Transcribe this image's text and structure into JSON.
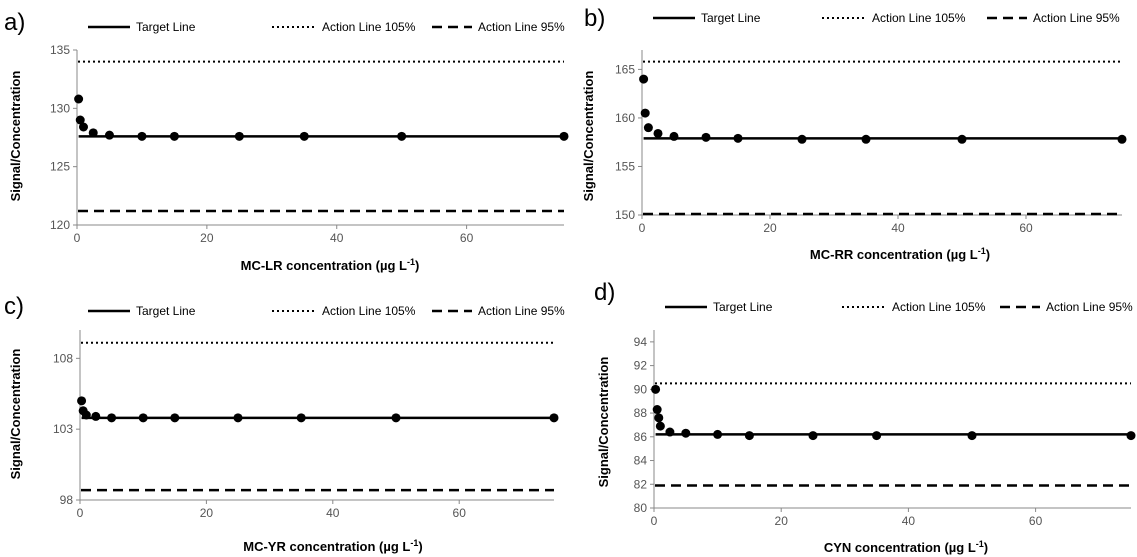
{
  "legend": {
    "target": "Target Line",
    "upper": "Action Line 105%",
    "lower": "Action Line 95%"
  },
  "chart_data": [
    {
      "type": "scatter",
      "panel_label": "a)",
      "xlabel_main": "MC-LR concentration (µg L",
      "xlabel_sup": "-1",
      "xlabel_end": ")",
      "ylabel": "Signal/Concentration",
      "xlim": [
        0,
        75
      ],
      "ylim": [
        120,
        135
      ],
      "xticks": [
        0,
        20,
        40,
        60
      ],
      "yticks": [
        120,
        125,
        130,
        135
      ],
      "target_value": 127.6,
      "action_105": 134.0,
      "action_95": 121.2,
      "points": [
        {
          "x": 0.25,
          "y": 130.8
        },
        {
          "x": 0.5,
          "y": 129.0
        },
        {
          "x": 1.0,
          "y": 128.4
        },
        {
          "x": 2.5,
          "y": 127.9
        },
        {
          "x": 5,
          "y": 127.7
        },
        {
          "x": 10,
          "y": 127.6
        },
        {
          "x": 15,
          "y": 127.6
        },
        {
          "x": 25,
          "y": 127.6
        },
        {
          "x": 35,
          "y": 127.6
        },
        {
          "x": 50,
          "y": 127.6
        },
        {
          "x": 75,
          "y": 127.6
        }
      ]
    },
    {
      "type": "scatter",
      "panel_label": "b)",
      "xlabel_main": "MC-RR concentration (µg L",
      "xlabel_sup": "-1",
      "xlabel_end": ")",
      "ylabel": "Signal/Concentration",
      "xlim": [
        0,
        75
      ],
      "ylim": [
        150,
        167
      ],
      "xticks": [
        0,
        20,
        40,
        60
      ],
      "yticks": [
        150,
        155,
        160,
        165
      ],
      "target_value": 157.9,
      "action_105": 165.8,
      "action_95": 150.1,
      "points": [
        {
          "x": 0.25,
          "y": 164.0
        },
        {
          "x": 0.5,
          "y": 160.5
        },
        {
          "x": 1.0,
          "y": 159.0
        },
        {
          "x": 2.5,
          "y": 158.4
        },
        {
          "x": 5,
          "y": 158.1
        },
        {
          "x": 10,
          "y": 158.0
        },
        {
          "x": 15,
          "y": 157.9
        },
        {
          "x": 25,
          "y": 157.8
        },
        {
          "x": 35,
          "y": 157.8
        },
        {
          "x": 50,
          "y": 157.8
        },
        {
          "x": 75,
          "y": 157.8
        }
      ]
    },
    {
      "type": "scatter",
      "panel_label": "c)",
      "xlabel_main": "MC-YR concentration (µg L",
      "xlabel_sup": "-1",
      "xlabel_end": ")",
      "ylabel": "Signal/Concentration",
      "xlim": [
        0,
        75
      ],
      "ylim": [
        98,
        110
      ],
      "xticks": [
        0,
        20,
        40,
        60
      ],
      "yticks": [
        98,
        103,
        108
      ],
      "target_value": 103.8,
      "action_105": 109.1,
      "action_95": 98.7,
      "points": [
        {
          "x": 0.25,
          "y": 105.0
        },
        {
          "x": 0.5,
          "y": 104.3
        },
        {
          "x": 1.0,
          "y": 104.0
        },
        {
          "x": 2.5,
          "y": 103.9
        },
        {
          "x": 5,
          "y": 103.8
        },
        {
          "x": 10,
          "y": 103.8
        },
        {
          "x": 15,
          "y": 103.8
        },
        {
          "x": 25,
          "y": 103.8
        },
        {
          "x": 35,
          "y": 103.8
        },
        {
          "x": 50,
          "y": 103.8
        },
        {
          "x": 75,
          "y": 103.8
        }
      ]
    },
    {
      "type": "scatter",
      "panel_label": "d)",
      "xlabel_main": "CYN concentration (µg L",
      "xlabel_sup": "-1",
      "xlabel_end": ")",
      "ylabel": "Signal/Concentration",
      "xlim": [
        0,
        75
      ],
      "ylim": [
        80,
        95
      ],
      "xticks": [
        0,
        20,
        40,
        60
      ],
      "yticks": [
        80,
        82,
        84,
        86,
        88,
        90,
        92,
        94
      ],
      "target_value": 86.2,
      "action_105": 90.5,
      "action_95": 81.9,
      "points": [
        {
          "x": 0.25,
          "y": 90.0
        },
        {
          "x": 0.5,
          "y": 88.3
        },
        {
          "x": 0.75,
          "y": 87.6
        },
        {
          "x": 1.0,
          "y": 86.9
        },
        {
          "x": 2.5,
          "y": 86.4
        },
        {
          "x": 5,
          "y": 86.3
        },
        {
          "x": 10,
          "y": 86.2
        },
        {
          "x": 15,
          "y": 86.1
        },
        {
          "x": 25,
          "y": 86.1
        },
        {
          "x": 35,
          "y": 86.1
        },
        {
          "x": 50,
          "y": 86.1
        },
        {
          "x": 75,
          "y": 86.1
        }
      ]
    }
  ]
}
